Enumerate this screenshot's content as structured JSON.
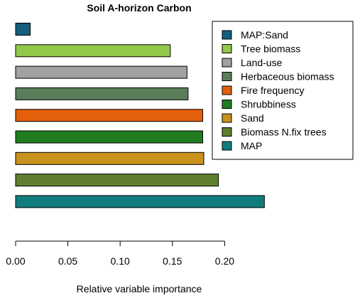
{
  "chart_data": {
    "type": "bar",
    "orientation": "horizontal",
    "title": "Soil A-horizon Carbon",
    "xlabel": "Relative variable importance",
    "ylabel": "",
    "xlim": [
      0,
      0.24
    ],
    "xticks": [
      "0.00",
      "0.05",
      "0.10",
      "0.15",
      "0.20"
    ],
    "grid": false,
    "legend_position": "top-right",
    "categories": [
      "MAP:Sand",
      "Tree biomass",
      "Land-use",
      "Herbaceous biomass",
      "Fire frequency",
      "Shrubbiness",
      "Sand",
      "Biomass N.fix trees",
      "MAP"
    ],
    "values": [
      0.014,
      0.148,
      0.164,
      0.165,
      0.179,
      0.179,
      0.18,
      0.194,
      0.238
    ],
    "colors": [
      "#155f7d",
      "#92c84a",
      "#a1a1a1",
      "#5b7e5a",
      "#e45f0b",
      "#1f7d1f",
      "#c8921d",
      "#5f7f2e",
      "#117c7d"
    ]
  }
}
